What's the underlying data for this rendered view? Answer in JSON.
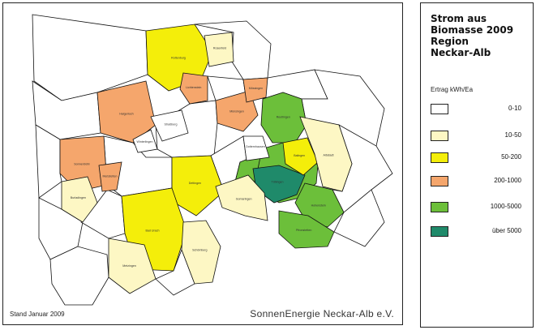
{
  "legend": {
    "title": "Strom aus\nBiomasse 2009\nRegion\nNeckar-Alb",
    "unit": "Ertrag kWh/Ea",
    "classes": [
      {
        "label": "0-10",
        "color": "#ffffff"
      },
      {
        "label": "10-50",
        "color": "#fdf7c4"
      },
      {
        "label": "50-200",
        "color": "#f4ee0a"
      },
      {
        "label": "200-1000",
        "color": "#f5a66c"
      },
      {
        "label": "1000-5000",
        "color": "#6cbf3a"
      },
      {
        "label": "über 5000",
        "color": "#1f8a6a"
      }
    ]
  },
  "map": {
    "stand": "Stand Januar 2009",
    "credit": "SonnenEnergie Neckar-Alb e.V.",
    "border_color": "#111111",
    "regions": [
      {
        "name": "Hechingen",
        "class": 4
      },
      {
        "name": "Reutlingen",
        "class": 4
      },
      {
        "name": "Engstingen",
        "class": 4
      },
      {
        "name": "Hohenstein",
        "class": 4
      },
      {
        "name": "Pfronstetten",
        "class": 4
      },
      {
        "name": "Tübingen",
        "class": 5
      },
      {
        "name": "Balingen",
        "class": 2
      },
      {
        "name": "Rottenburg",
        "class": 2
      },
      {
        "name": "Dettingen",
        "class": 2
      },
      {
        "name": "Bad Urach",
        "class": 2
      },
      {
        "name": "Sonnenbühl",
        "class": 3
      },
      {
        "name": "Lichtenstein",
        "class": 3
      },
      {
        "name": "Münsingen",
        "class": 3
      },
      {
        "name": "Mössingen",
        "class": 3
      },
      {
        "name": "Haigerloch",
        "class": 3
      },
      {
        "name": "Albstadt",
        "class": 1
      },
      {
        "name": "Burladingen",
        "class": 1
      },
      {
        "name": "Gomaringen",
        "class": 1
      },
      {
        "name": "Metzingen",
        "class": 1
      },
      {
        "name": "Schömberg",
        "class": 1
      },
      {
        "name": "Rosenfeld",
        "class": 1
      },
      {
        "name": "Meßstetten",
        "class": 3
      },
      {
        "name": "Winterlingen",
        "class": 0
      },
      {
        "name": "Straßberg",
        "class": 0
      },
      {
        "name": "Dotternhausen",
        "class": 0
      }
    ]
  }
}
